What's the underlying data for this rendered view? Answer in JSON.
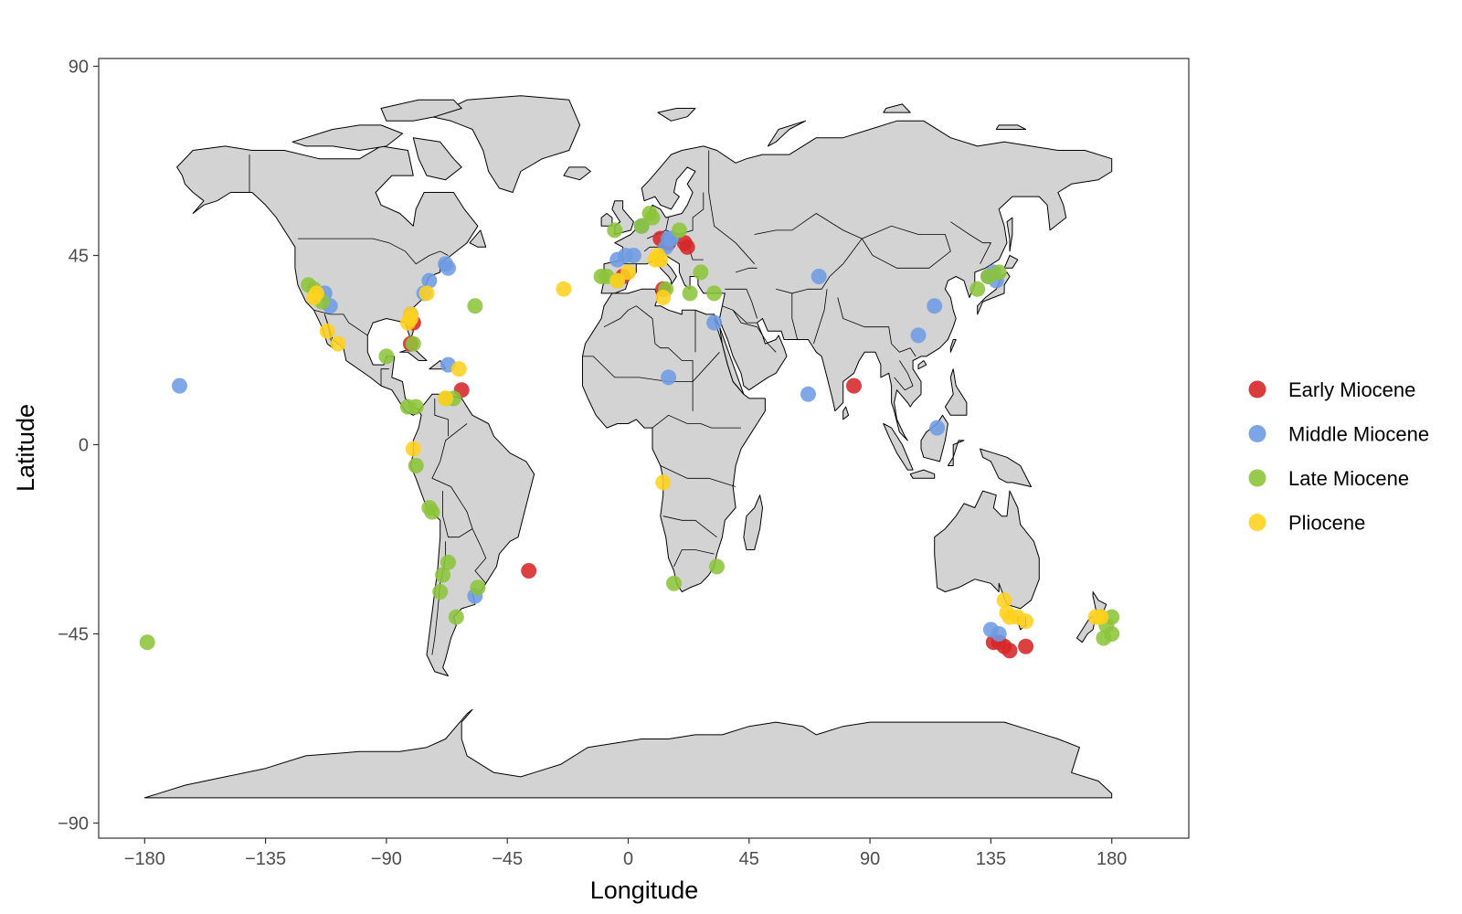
{
  "chart_data": {
    "type": "scatter",
    "xlabel": "Longitude",
    "ylabel": "Latitude",
    "xlim": [
      -200,
      210
    ],
    "ylim": [
      -93,
      93
    ],
    "x_ticks": [
      -180,
      -135,
      -90,
      -45,
      0,
      45,
      90,
      135,
      180
    ],
    "y_ticks": [
      90,
      45,
      0,
      -45,
      -90
    ],
    "x_tick_labels": [
      "−180",
      "−135",
      "−90",
      "−45",
      "0",
      "45",
      "90",
      "135",
      "180"
    ],
    "y_tick_labels": [
      "90",
      "45",
      "0",
      "−45",
      "−90"
    ],
    "grid": false,
    "legend_position": "right",
    "background": "world map (land polygons with country borders, light grey fill)",
    "colors": {
      "Early Miocene": "#d62728",
      "Middle Miocene": "#6e9be3",
      "Late Miocene": "#8cc43a",
      "Pliocene": "#ffd21f",
      "land_fill": "#d3d3d3"
    },
    "series": [
      {
        "name": "Early Miocene",
        "points": [
          [
            12,
            49
          ],
          [
            15,
            48
          ],
          [
            21,
            48
          ],
          [
            22,
            47
          ],
          [
            -2,
            40
          ],
          [
            13,
            37
          ],
          [
            -80,
            29
          ],
          [
            -81,
            24
          ],
          [
            -62,
            13
          ],
          [
            -37,
            -30
          ],
          [
            84,
            14
          ],
          [
            136,
            -47
          ],
          [
            138,
            -47
          ],
          [
            140,
            -48
          ],
          [
            142,
            -49
          ],
          [
            148,
            -48
          ]
        ]
      },
      {
        "name": "Middle Miocene",
        "points": [
          [
            -113,
            36
          ],
          [
            -111,
            33
          ],
          [
            -74,
            39
          ],
          [
            -67,
            42
          ],
          [
            -68,
            43
          ],
          [
            -81,
            31
          ],
          [
            -76,
            36
          ],
          [
            -67,
            19
          ],
          [
            -167,
            14
          ],
          [
            -4,
            44
          ],
          [
            -1,
            45
          ],
          [
            2,
            45
          ],
          [
            5,
            52
          ],
          [
            15,
            49
          ],
          [
            14,
            47
          ],
          [
            16,
            49
          ],
          [
            32,
            29
          ],
          [
            15,
            16
          ],
          [
            71,
            40
          ],
          [
            67,
            12
          ],
          [
            114,
            33
          ],
          [
            108,
            26
          ],
          [
            115,
            4
          ],
          [
            134,
            40
          ],
          [
            136,
            41
          ],
          [
            137,
            39
          ],
          [
            135,
            -44
          ],
          [
            138,
            -45
          ],
          [
            -57,
            -36
          ]
        ]
      },
      {
        "name": "Late Miocene",
        "points": [
          [
            -119,
            38
          ],
          [
            -117,
            37
          ],
          [
            -114,
            34
          ],
          [
            -90,
            21
          ],
          [
            -80,
            24
          ],
          [
            -82,
            9
          ],
          [
            -79,
            9
          ],
          [
            -68,
            11
          ],
          [
            -65,
            11
          ],
          [
            -79,
            -5
          ],
          [
            -74,
            -15
          ],
          [
            -73,
            -16
          ],
          [
            -67,
            -28
          ],
          [
            -69,
            -31
          ],
          [
            -70,
            -35
          ],
          [
            -56,
            -34
          ],
          [
            -64,
            -41
          ],
          [
            -57,
            33
          ],
          [
            -10,
            40
          ],
          [
            -8,
            40
          ],
          [
            -4,
            39
          ],
          [
            5,
            52
          ],
          [
            8,
            55
          ],
          [
            9,
            54
          ],
          [
            19,
            51
          ],
          [
            27,
            41
          ],
          [
            14,
            37
          ],
          [
            23,
            36
          ],
          [
            32,
            36
          ],
          [
            33,
            -29
          ],
          [
            17,
            -33
          ],
          [
            130,
            37
          ],
          [
            138,
            41
          ],
          [
            -179,
            -47
          ],
          [
            177,
            -46
          ],
          [
            180,
            -45
          ],
          [
            178,
            -43
          ],
          [
            180,
            -41
          ],
          [
            176,
            -41
          ],
          [
            134,
            40
          ],
          [
            -5,
            51
          ]
        ]
      },
      {
        "name": "Pliocene",
        "points": [
          [
            -117,
            35
          ],
          [
            -116,
            36
          ],
          [
            -112,
            27
          ],
          [
            -108,
            24
          ],
          [
            -75,
            36
          ],
          [
            -82,
            29
          ],
          [
            -81,
            31
          ],
          [
            -81,
            30
          ],
          [
            -80,
            -1
          ],
          [
            -68,
            11
          ],
          [
            -63,
            18
          ],
          [
            -24,
            37
          ],
          [
            -4,
            39
          ],
          [
            0,
            41
          ],
          [
            10,
            44
          ],
          [
            11,
            45
          ],
          [
            12,
            44
          ],
          [
            13,
            35
          ],
          [
            13,
            -9
          ],
          [
            140,
            -37
          ],
          [
            141,
            -40
          ],
          [
            142,
            -41
          ],
          [
            145,
            -41
          ],
          [
            148,
            -42
          ],
          [
            174,
            -41
          ],
          [
            176,
            -41
          ]
        ]
      }
    ]
  }
}
